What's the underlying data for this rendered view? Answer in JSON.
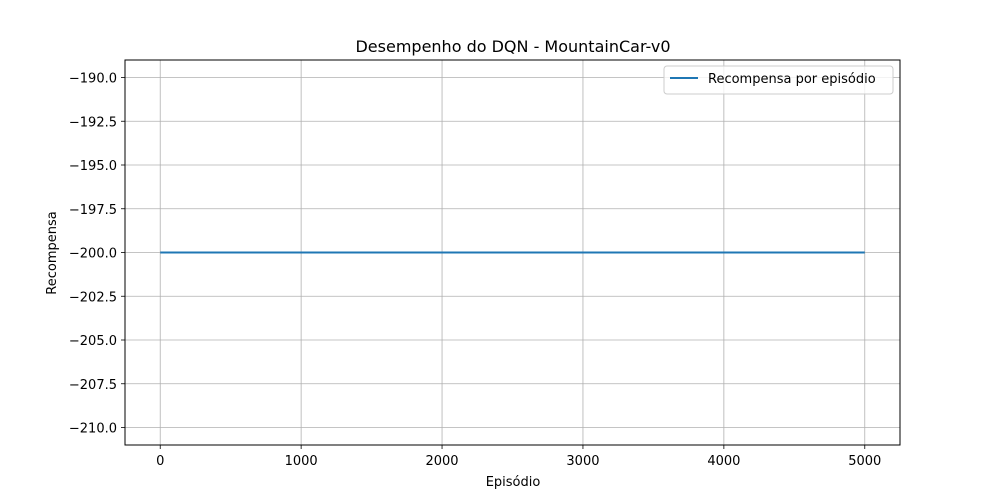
{
  "chart_data": {
    "type": "line",
    "title": "Desempenho do DQN - MountainCar-v0",
    "xlabel": "Episódio",
    "ylabel": "Recompensa",
    "xlim": [
      -250,
      5250
    ],
    "ylim": [
      -211,
      -189
    ],
    "xticks": [
      0,
      1000,
      2000,
      3000,
      4000,
      5000
    ],
    "xtick_labels": [
      "0",
      "1000",
      "2000",
      "3000",
      "4000",
      "5000"
    ],
    "yticks": [
      -190.0,
      -192.5,
      -195.0,
      -197.5,
      -200.0,
      -202.5,
      -205.0,
      -207.5,
      -210.0
    ],
    "ytick_labels": [
      "−190.0",
      "−192.5",
      "−195.0",
      "−197.5",
      "−200.0",
      "−202.5",
      "−205.0",
      "−207.5",
      "−210.0"
    ],
    "grid": true,
    "legend_position": "top-right",
    "series": [
      {
        "name": "Recompensa por episódio",
        "color": "#1f77b4",
        "x": [
          0,
          5000
        ],
        "y": [
          -200,
          -200
        ]
      }
    ]
  }
}
